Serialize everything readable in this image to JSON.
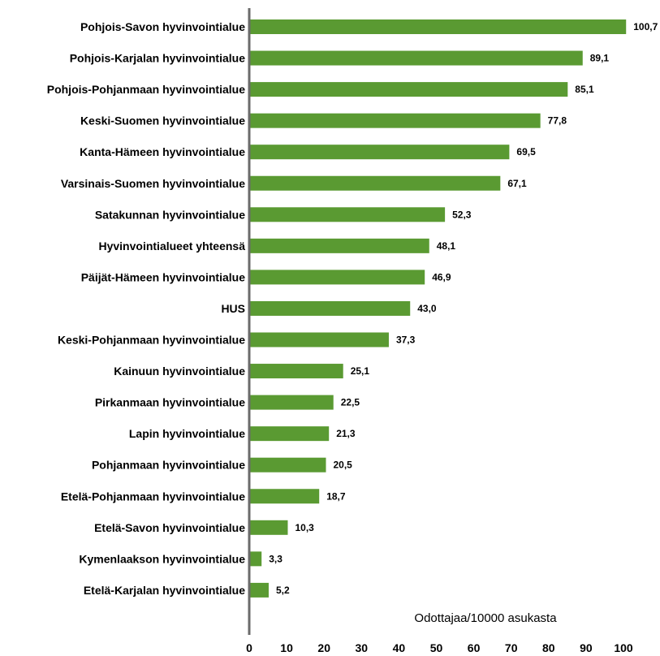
{
  "chart_data": {
    "type": "bar",
    "orientation": "horizontal",
    "title": "",
    "xlabel": "Odottajaa/10000 asukasta",
    "ylabel": "",
    "xlim": [
      0,
      100
    ],
    "xticks": [
      0,
      10,
      20,
      30,
      40,
      50,
      60,
      70,
      80,
      90,
      100
    ],
    "grid": false,
    "bar_color": "#5a9a32",
    "axis_color": "#6b6b6b",
    "categories": [
      "Pohjois-Savon hyvinvointialue",
      "Pohjois-Karjalan hyvinvointialue",
      "Pohjois-Pohjanmaan hyvinvointialue",
      "Keski-Suomen hyvinvointialue",
      "Kanta-Hämeen hyvinvointialue",
      "Varsinais-Suomen hyvinvointialue",
      "Satakunnan hyvinvointialue",
      "Hyvinvointialueet yhteensä",
      "Päijät-Hämeen hyvinvointialue",
      "HUS",
      "Keski-Pohjanmaan hyvinvointialue",
      "Kainuun hyvinvointialue",
      "Pirkanmaan hyvinvointialue",
      "Lapin hyvinvointialue",
      "Pohjanmaan hyvinvointialue",
      "Etelä-Pohjanmaan hyvinvointialue",
      "Etelä-Savon hyvinvointialue",
      "Kymenlaakson hyvinvointialue",
      "Etelä-Karjalan hyvinvointialue"
    ],
    "values": [
      100.7,
      89.1,
      85.1,
      77.8,
      69.5,
      67.1,
      52.3,
      48.1,
      46.9,
      43.0,
      37.3,
      25.1,
      22.5,
      21.3,
      20.5,
      18.7,
      10.3,
      3.3,
      5.2
    ],
    "value_labels": [
      "100,7",
      "89,1",
      "85,1",
      "77,8",
      "69,5",
      "67,1",
      "52,3",
      "48,1",
      "46,9",
      "43,0",
      "37,3",
      "25,1",
      "22,5",
      "21,3",
      "20,5",
      "18,7",
      "10,3",
      "3,3",
      "5,2"
    ]
  }
}
